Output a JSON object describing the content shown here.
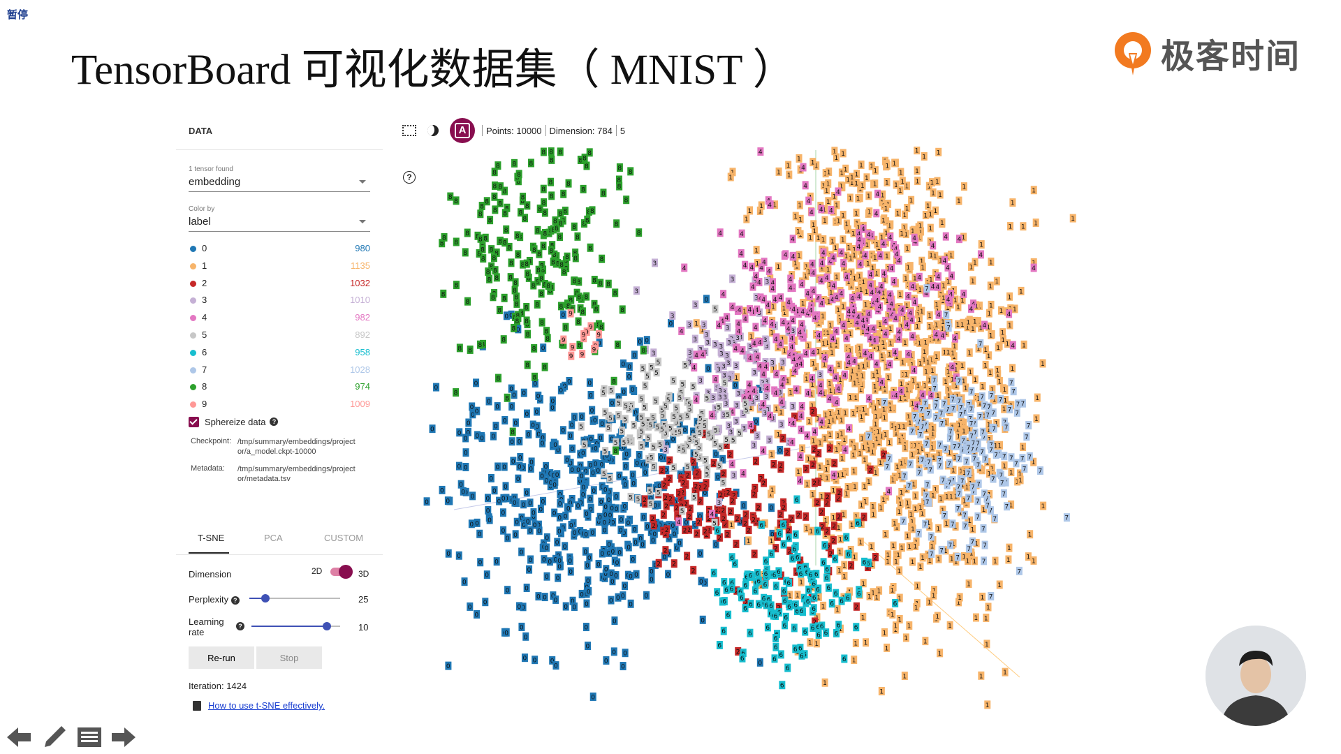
{
  "overlay": {
    "pause_label": "暂停"
  },
  "slide": {
    "title": "TensorBoard 可视化数据集（ MNIST ）"
  },
  "logo": {
    "text": "极客时间",
    "mark_color": "#f27a20"
  },
  "data_panel": {
    "heading": "DATA",
    "tensor_field": {
      "label": "1 tensor found",
      "value": "embedding"
    },
    "color_field": {
      "label": "Color by",
      "value": "label"
    },
    "legend": [
      {
        "label": "0",
        "count": "980",
        "color": "#1f77b4"
      },
      {
        "label": "1",
        "count": "1135",
        "color": "#f7b46a"
      },
      {
        "label": "2",
        "count": "1032",
        "color": "#c62828"
      },
      {
        "label": "3",
        "count": "1010",
        "color": "#c5b0d5"
      },
      {
        "label": "4",
        "count": "982",
        "color": "#e377c2"
      },
      {
        "label": "5",
        "count": "892",
        "color": "#c7c7c7"
      },
      {
        "label": "6",
        "count": "958",
        "color": "#17becf"
      },
      {
        "label": "7",
        "count": "1028",
        "color": "#aec7e8"
      },
      {
        "label": "8",
        "count": "974",
        "color": "#2ca02c"
      },
      {
        "label": "9",
        "count": "1009",
        "color": "#ff9896"
      }
    ],
    "sphereize": {
      "label": "Sphereize data",
      "checked": true
    },
    "checkpoint": {
      "key": "Checkpoint:",
      "value": "/tmp/summary/embeddings/projector/a_model.ckpt-10000"
    },
    "metadata": {
      "key": "Metadata:",
      "value": "/tmp/summary/embeddings/projector/metadata.tsv"
    }
  },
  "projection": {
    "tabs": [
      "T-SNE",
      "PCA",
      "CUSTOM"
    ],
    "active_tab": "T-SNE",
    "dimension": {
      "label": "Dimension",
      "option_2d": "2D",
      "option_3d": "3D",
      "selected": "3D"
    },
    "perplexity": {
      "label": "Perplexity",
      "value": "25",
      "level": 0.18
    },
    "learning_rate": {
      "label_line1": "Learning",
      "label_line2": "rate",
      "value": "10",
      "level": 0.85
    },
    "rerun_label": "Re-run",
    "stop_label": "Stop",
    "iteration": "Iteration: 1424",
    "howto_link": "How to use t-SNE effectively."
  },
  "toolbar": {
    "label_button": "A",
    "points": "Points: 10000",
    "dimension": "Dimension: 784",
    "selected": "5"
  },
  "scatter_glyphs": [
    "0",
    "1",
    "2",
    "3",
    "4",
    "5",
    "6",
    "7",
    "8",
    "9"
  ]
}
